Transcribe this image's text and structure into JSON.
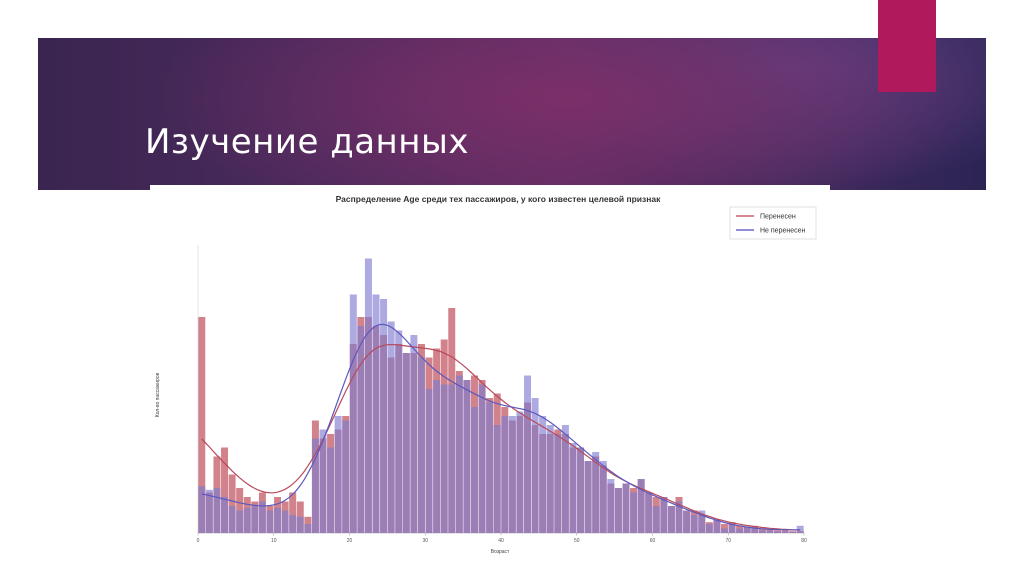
{
  "slide": {
    "title": "Изучение данных",
    "colors": {
      "banner": "#4a2a5c",
      "accent": "#b1195d"
    }
  },
  "chart_data": {
    "type": "bar",
    "title": "Распределение Age среди тех пассажиров, у кого известен целевой признак",
    "xlabel": "Возраст",
    "ylabel": "Кол-во пассажиров",
    "legend": {
      "position": "top-right",
      "entries": [
        "Перенесен",
        "Не перенесен"
      ]
    },
    "grid": false,
    "xlim": [
      0,
      80
    ],
    "ylim": [
      0,
      320
    ],
    "x_ticks": [
      "0",
      "10",
      "20",
      "30",
      "40",
      "50",
      "60",
      "70",
      "80"
    ],
    "bin_width": 1,
    "series": [
      {
        "name": "Перенесен",
        "color": "#c5636e",
        "values": [
          240,
          45,
          85,
          95,
          65,
          50,
          40,
          35,
          45,
          30,
          40,
          35,
          45,
          35,
          18,
          125,
          105,
          110,
          115,
          130,
          210,
          240,
          240,
          230,
          220,
          195,
          210,
          200,
          200,
          210,
          195,
          205,
          215,
          250,
          180,
          170,
          175,
          170,
          150,
          155,
          140,
          125,
          130,
          145,
          120,
          110,
          110,
          115,
          110,
          95,
          95,
          80,
          85,
          75,
          55,
          50,
          55,
          50,
          60,
          45,
          40,
          40,
          30,
          40,
          25,
          25,
          20,
          12,
          15,
          10,
          12,
          8,
          7,
          8,
          5,
          4,
          3,
          3,
          2,
          2
        ]
      },
      {
        "name": "Не перенесен",
        "color": "#7f7cd0",
        "values": [
          52,
          48,
          50,
          40,
          30,
          25,
          28,
          30,
          35,
          25,
          28,
          25,
          20,
          18,
          10,
          105,
          115,
          95,
          130,
          125,
          265,
          230,
          305,
          265,
          260,
          235,
          225,
          200,
          220,
          195,
          160,
          170,
          165,
          165,
          175,
          170,
          140,
          165,
          145,
          120,
          130,
          130,
          135,
          175,
          150,
          130,
          120,
          110,
          120,
          100,
          95,
          80,
          90,
          80,
          60,
          50,
          55,
          45,
          60,
          45,
          30,
          40,
          30,
          35,
          25,
          20,
          25,
          10,
          15,
          5,
          10,
          5,
          6,
          5,
          3,
          3,
          2,
          2,
          1,
          8
        ]
      }
    ]
  }
}
